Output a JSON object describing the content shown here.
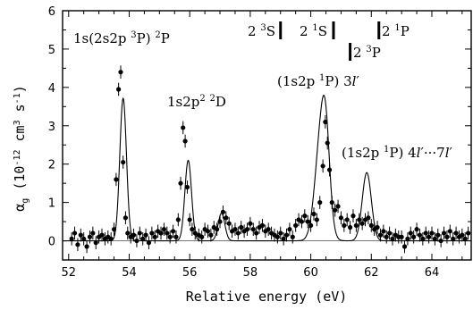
{
  "chart_data": {
    "type": "scatter",
    "title": "",
    "xlabel": "Relative energy (eV)",
    "ylabel": "α_g (10^-12 cm^3 s^-1)",
    "xlim": [
      51.8,
      65.3
    ],
    "ylim": [
      -0.5,
      6
    ],
    "x_ticks": [
      52,
      54,
      56,
      58,
      60,
      62,
      64
    ],
    "x_tick_labels": [
      "52",
      "54",
      "56",
      "58",
      "60",
      "62",
      "64"
    ],
    "y_ticks": [
      0,
      1,
      2,
      3,
      4,
      5,
      6
    ],
    "y_tick_labels": [
      "0",
      "1",
      "2",
      "3",
      "4",
      "5",
      "6"
    ],
    "grid": false,
    "baseline": 0,
    "series": [
      {
        "kind": "markers-with-errorbars",
        "points": [
          {
            "x": 52.1,
            "y": 0.05
          },
          {
            "x": 52.2,
            "y": 0.2
          },
          {
            "x": 52.3,
            "y": -0.1
          },
          {
            "x": 52.4,
            "y": 0.15
          },
          {
            "x": 52.5,
            "y": 0.05
          },
          {
            "x": 52.6,
            "y": -0.15
          },
          {
            "x": 52.7,
            "y": 0.1
          },
          {
            "x": 52.8,
            "y": 0.2
          },
          {
            "x": 52.9,
            "y": -0.05
          },
          {
            "x": 53.0,
            "y": 0.1
          },
          {
            "x": 53.1,
            "y": 0.15
          },
          {
            "x": 53.2,
            "y": 0.05
          },
          {
            "x": 53.3,
            "y": 0.1
          },
          {
            "x": 53.4,
            "y": 0.05
          },
          {
            "x": 53.5,
            "y": 0.3
          },
          {
            "x": 53.57,
            "y": 1.6
          },
          {
            "x": 53.65,
            "y": 3.95
          },
          {
            "x": 53.72,
            "y": 4.4
          },
          {
            "x": 53.8,
            "y": 2.05
          },
          {
            "x": 53.88,
            "y": 0.6
          },
          {
            "x": 53.95,
            "y": 0.2
          },
          {
            "x": 54.05,
            "y": 0.1
          },
          {
            "x": 54.15,
            "y": 0.15
          },
          {
            "x": 54.25,
            "y": 0.0
          },
          {
            "x": 54.35,
            "y": 0.2
          },
          {
            "x": 54.45,
            "y": 0.05
          },
          {
            "x": 54.55,
            "y": 0.15
          },
          {
            "x": 54.65,
            "y": -0.05
          },
          {
            "x": 54.75,
            "y": 0.2
          },
          {
            "x": 54.85,
            "y": 0.1
          },
          {
            "x": 54.95,
            "y": 0.25
          },
          {
            "x": 55.05,
            "y": 0.2
          },
          {
            "x": 55.15,
            "y": 0.3
          },
          {
            "x": 55.25,
            "y": 0.2
          },
          {
            "x": 55.35,
            "y": 0.1
          },
          {
            "x": 55.45,
            "y": 0.25
          },
          {
            "x": 55.55,
            "y": 0.1
          },
          {
            "x": 55.62,
            "y": 0.55
          },
          {
            "x": 55.7,
            "y": 1.5
          },
          {
            "x": 55.78,
            "y": 2.95
          },
          {
            "x": 55.85,
            "y": 2.6
          },
          {
            "x": 55.92,
            "y": 1.4
          },
          {
            "x": 56.0,
            "y": 0.55
          },
          {
            "x": 56.08,
            "y": 0.3
          },
          {
            "x": 56.18,
            "y": 0.2
          },
          {
            "x": 56.3,
            "y": 0.15
          },
          {
            "x": 56.4,
            "y": 0.1
          },
          {
            "x": 56.5,
            "y": 0.3
          },
          {
            "x": 56.6,
            "y": 0.25
          },
          {
            "x": 56.7,
            "y": 0.15
          },
          {
            "x": 56.8,
            "y": 0.35
          },
          {
            "x": 56.9,
            "y": 0.3
          },
          {
            "x": 57.0,
            "y": 0.5
          },
          {
            "x": 57.1,
            "y": 0.75
          },
          {
            "x": 57.2,
            "y": 0.6
          },
          {
            "x": 57.3,
            "y": 0.45
          },
          {
            "x": 57.4,
            "y": 0.25
          },
          {
            "x": 57.5,
            "y": 0.3
          },
          {
            "x": 57.6,
            "y": 0.2
          },
          {
            "x": 57.7,
            "y": 0.35
          },
          {
            "x": 57.8,
            "y": 0.25
          },
          {
            "x": 57.9,
            "y": 0.3
          },
          {
            "x": 58.0,
            "y": 0.45
          },
          {
            "x": 58.1,
            "y": 0.3
          },
          {
            "x": 58.2,
            "y": 0.2
          },
          {
            "x": 58.3,
            "y": 0.35
          },
          {
            "x": 58.4,
            "y": 0.4
          },
          {
            "x": 58.5,
            "y": 0.25
          },
          {
            "x": 58.6,
            "y": 0.3
          },
          {
            "x": 58.7,
            "y": 0.2
          },
          {
            "x": 58.8,
            "y": 0.15
          },
          {
            "x": 58.9,
            "y": 0.1
          },
          {
            "x": 59.0,
            "y": 0.2
          },
          {
            "x": 59.1,
            "y": 0.05
          },
          {
            "x": 59.2,
            "y": 0.15
          },
          {
            "x": 59.3,
            "y": 0.3
          },
          {
            "x": 59.4,
            "y": 0.1
          },
          {
            "x": 59.5,
            "y": 0.4
          },
          {
            "x": 59.6,
            "y": 0.55
          },
          {
            "x": 59.7,
            "y": 0.5
          },
          {
            "x": 59.8,
            "y": 0.65
          },
          {
            "x": 59.9,
            "y": 0.5
          },
          {
            "x": 60.0,
            "y": 0.4
          },
          {
            "x": 60.1,
            "y": 0.7
          },
          {
            "x": 60.2,
            "y": 0.55
          },
          {
            "x": 60.3,
            "y": 1.0
          },
          {
            "x": 60.4,
            "y": 1.95
          },
          {
            "x": 60.48,
            "y": 3.1
          },
          {
            "x": 60.55,
            "y": 2.55
          },
          {
            "x": 60.62,
            "y": 1.85
          },
          {
            "x": 60.7,
            "y": 1.0
          },
          {
            "x": 60.8,
            "y": 0.8
          },
          {
            "x": 60.9,
            "y": 0.9
          },
          {
            "x": 61.0,
            "y": 0.6
          },
          {
            "x": 61.1,
            "y": 0.4
          },
          {
            "x": 61.2,
            "y": 0.55
          },
          {
            "x": 61.3,
            "y": 0.35
          },
          {
            "x": 61.4,
            "y": 0.65
          },
          {
            "x": 61.5,
            "y": 0.4
          },
          {
            "x": 61.6,
            "y": 0.55
          },
          {
            "x": 61.7,
            "y": 0.45
          },
          {
            "x": 61.8,
            "y": 0.55
          },
          {
            "x": 61.9,
            "y": 0.6
          },
          {
            "x": 62.0,
            "y": 0.4
          },
          {
            "x": 62.1,
            "y": 0.3
          },
          {
            "x": 62.2,
            "y": 0.35
          },
          {
            "x": 62.3,
            "y": 0.15
          },
          {
            "x": 62.4,
            "y": 0.25
          },
          {
            "x": 62.5,
            "y": 0.1
          },
          {
            "x": 62.6,
            "y": 0.2
          },
          {
            "x": 62.7,
            "y": 0.05
          },
          {
            "x": 62.8,
            "y": 0.15
          },
          {
            "x": 62.9,
            "y": 0.1
          },
          {
            "x": 63.0,
            "y": 0.1
          },
          {
            "x": 63.1,
            "y": -0.15
          },
          {
            "x": 63.2,
            "y": 0.05
          },
          {
            "x": 63.3,
            "y": 0.2
          },
          {
            "x": 63.4,
            "y": 0.1
          },
          {
            "x": 63.5,
            "y": 0.3
          },
          {
            "x": 63.6,
            "y": 0.15
          },
          {
            "x": 63.7,
            "y": 0.05
          },
          {
            "x": 63.8,
            "y": 0.2
          },
          {
            "x": 63.9,
            "y": 0.1
          },
          {
            "x": 64.0,
            "y": 0.2
          },
          {
            "x": 64.1,
            "y": 0.05
          },
          {
            "x": 64.2,
            "y": 0.15
          },
          {
            "x": 64.3,
            "y": 0.0
          },
          {
            "x": 64.4,
            "y": 0.2
          },
          {
            "x": 64.5,
            "y": 0.1
          },
          {
            "x": 64.6,
            "y": 0.25
          },
          {
            "x": 64.7,
            "y": 0.05
          },
          {
            "x": 64.8,
            "y": 0.2
          },
          {
            "x": 64.9,
            "y": 0.1
          },
          {
            "x": 65.0,
            "y": 0.15
          },
          {
            "x": 65.1,
            "y": 0.05
          },
          {
            "x": 65.2,
            "y": 0.2
          }
        ],
        "error": 0.17
      },
      {
        "kind": "fit-curve",
        "peaks": [
          {
            "center": 53.8,
            "height": 3.72,
            "sigma": 0.11
          },
          {
            "center": 55.95,
            "height": 2.1,
            "sigma": 0.11
          },
          {
            "center": 57.05,
            "height": 0.72,
            "sigma": 0.11
          },
          {
            "center": 60.35,
            "height": 2.8,
            "sigma": 0.2
          },
          {
            "center": 60.5,
            "height": 1.4,
            "sigma": 0.13
          },
          {
            "center": 61.85,
            "height": 1.78,
            "sigma": 0.15
          }
        ]
      }
    ],
    "annotations": [
      {
        "id": "ann-1s2s2p",
        "parts": [
          "1s(2s2p ",
          "3",
          "P) ",
          "2",
          "P"
        ],
        "sup": [
          1,
          3
        ]
      },
      {
        "id": "ann-1s2p2",
        "parts": [
          "1s2p",
          "2",
          " ",
          "2",
          "D"
        ],
        "sup": [
          1,
          3
        ]
      },
      {
        "id": "ann-3l",
        "parts": [
          "(1s2p ",
          "1",
          "P) 3",
          "l",
          "′"
        ],
        "sup": [
          1
        ],
        "italic": [
          3
        ]
      },
      {
        "id": "ann-4l7l",
        "parts": [
          "(1s2p ",
          "1",
          "P) 4",
          "l",
          "′···7",
          "l",
          "′"
        ],
        "sup": [
          1
        ],
        "italic": [
          3,
          5
        ]
      },
      {
        "id": "ann-23S",
        "parts": [
          "2 ",
          "3",
          "S"
        ],
        "sup": [
          1
        ]
      },
      {
        "id": "ann-21S",
        "parts": [
          "2 ",
          "1",
          "S"
        ],
        "sup": [
          1
        ]
      },
      {
        "id": "ann-21P",
        "parts": [
          "2 ",
          "1",
          "P"
        ],
        "sup": [
          1
        ]
      },
      {
        "id": "ann-23P",
        "parts": [
          "2 ",
          "3",
          "P"
        ],
        "sup": [
          1
        ]
      }
    ],
    "threshold_markers": [
      {
        "label_id": "ann-23S",
        "x": 59.0
      },
      {
        "label_id": "ann-21S",
        "x": 60.75
      },
      {
        "label_id": "ann-21P",
        "x": 62.25
      },
      {
        "label_id": "ann-23P",
        "x": 61.3
      }
    ]
  }
}
